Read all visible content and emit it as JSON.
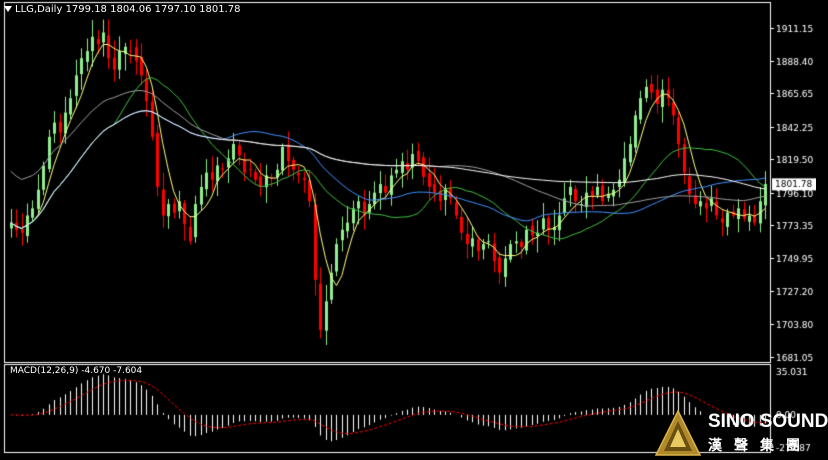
{
  "header": {
    "symbol": "LLG,Daily",
    "ohlc": "1799.18 1804.06 1797.10 1801.78"
  },
  "price_axis": {
    "ticks": [
      "1911.15",
      "1888.40",
      "1865.65",
      "1842.25",
      "1819.50",
      "1796.10",
      "1773.35",
      "1749.95",
      "1727.20",
      "1703.80",
      "1681.05"
    ],
    "current_label": "1801.78"
  },
  "macd": {
    "label": "MACD(12,26,9)",
    "values": "-4.670 -7.604",
    "ticks": [
      "35.031",
      "0.00",
      "-27.087"
    ]
  },
  "logo": {
    "en": "SINO SOUND",
    "cn": "漢聲集團"
  },
  "colors": {
    "background": "#000000",
    "bull": "#90ee90",
    "bear": "#ff0000",
    "ma_yellow": "#ffff80",
    "ma_green": "#40c040",
    "ma_blue": "#4090ff",
    "ma_white": "#ffffff",
    "ma_grey": "#a0a0a0",
    "macd_hist": "#ffffff",
    "macd_signal": "#ff0000"
  },
  "chart_data": {
    "type": "candlestick",
    "title": "LLG,Daily",
    "ylim": [
      1681.05,
      1920.0
    ],
    "closes": [
      1775,
      1770,
      1768,
      1780,
      1785,
      1798,
      1815,
      1835,
      1845,
      1838,
      1852,
      1862,
      1878,
      1890,
      1895,
      1905,
      1900,
      1908,
      1890,
      1882,
      1895,
      1898,
      1895,
      1888,
      1878,
      1860,
      1835,
      1800,
      1780,
      1788,
      1782,
      1790,
      1774,
      1762,
      1788,
      1800,
      1810,
      1805,
      1815,
      1812,
      1820,
      1830,
      1822,
      1810,
      1812,
      1805,
      1800,
      1808,
      1806,
      1812,
      1828,
      1818,
      1812,
      1808,
      1805,
      1790,
      1735,
      1700,
      1720,
      1740,
      1760,
      1770,
      1775,
      1785,
      1790,
      1780,
      1788,
      1796,
      1802,
      1796,
      1808,
      1812,
      1818,
      1812,
      1823,
      1818,
      1807,
      1800,
      1796,
      1790,
      1799,
      1792,
      1780,
      1768,
      1760,
      1764,
      1755,
      1760,
      1762,
      1748,
      1740,
      1750,
      1760,
      1762,
      1758,
      1770,
      1766,
      1768,
      1778,
      1770,
      1772,
      1780,
      1792,
      1800,
      1790,
      1788,
      1796,
      1793,
      1800,
      1790,
      1795,
      1798,
      1805,
      1820,
      1830,
      1850,
      1862,
      1870,
      1866,
      1858,
      1868,
      1862,
      1850,
      1830,
      1810,
      1795,
      1788,
      1790,
      1785,
      1792,
      1780,
      1775,
      1782,
      1780,
      1785,
      1778,
      1780,
      1775,
      1790,
      1802
    ]
  }
}
